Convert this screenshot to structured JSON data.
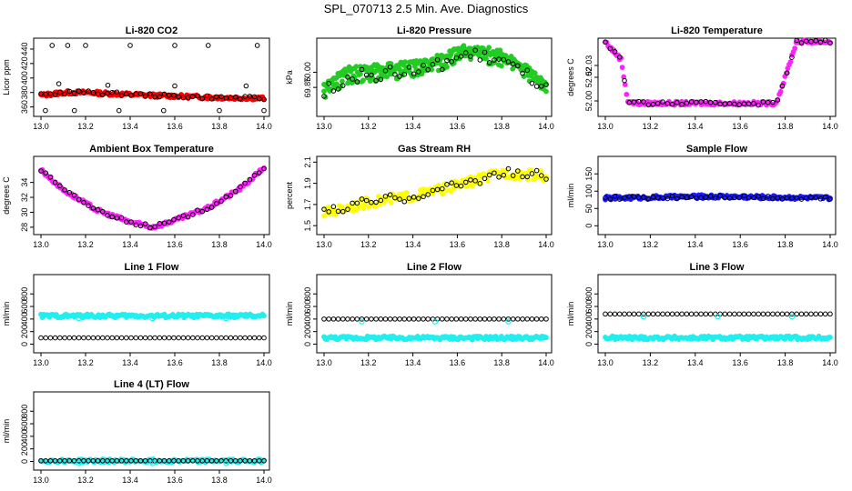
{
  "title": "SPL_070713  2.5 Min. Ave. Diagnostics",
  "colors": {
    "red": "#ff0000",
    "green": "#22cc22",
    "magenta": "#ff22ff",
    "yellow": "#ffff00",
    "blue": "#1a1aff",
    "cyan": "#22eeee",
    "black": "#000000"
  },
  "chart_data": [
    {
      "id": "co2",
      "type": "scatter",
      "title": "Li-820 CO2",
      "ylabel": "Licor ppm",
      "xlim": [
        13.0,
        14.0
      ],
      "ylim": [
        352,
        450
      ],
      "xticks": [
        "13.0",
        "13.2",
        "13.4",
        "13.6",
        "13.8",
        "14.0"
      ],
      "yticks": [
        "360",
        "380",
        "400",
        "420",
        "440"
      ],
      "fill_color": "#ff0000",
      "fill_trend": [
        [
          13.0,
          376
        ],
        [
          13.1,
          380
        ],
        [
          13.2,
          380
        ],
        [
          13.5,
          376
        ],
        [
          13.8,
          373
        ],
        [
          14.0,
          372
        ]
      ],
      "outlier_series": [
        {
          "x": 13.05,
          "y": 445
        },
        {
          "x": 13.12,
          "y": 445
        },
        {
          "x": 13.2,
          "y": 445
        },
        {
          "x": 13.4,
          "y": 445
        },
        {
          "x": 13.6,
          "y": 445
        },
        {
          "x": 13.75,
          "y": 445
        },
        {
          "x": 13.97,
          "y": 445
        },
        {
          "x": 13.02,
          "y": 355
        },
        {
          "x": 13.15,
          "y": 355
        },
        {
          "x": 13.35,
          "y": 355
        },
        {
          "x": 13.55,
          "y": 355
        },
        {
          "x": 13.8,
          "y": 355
        },
        {
          "x": 14.0,
          "y": 355
        },
        {
          "x": 13.08,
          "y": 392
        },
        {
          "x": 13.3,
          "y": 390
        },
        {
          "x": 13.6,
          "y": 389
        },
        {
          "x": 13.92,
          "y": 389
        }
      ]
    },
    {
      "id": "pressure",
      "type": "scatter",
      "title": "Li-820 Pressure",
      "ylabel": "kPa",
      "xlim": [
        13.0,
        14.0
      ],
      "ylim": [
        69.6,
        70.3
      ],
      "xticks": [
        "13.0",
        "13.2",
        "13.4",
        "13.6",
        "13.8",
        "14.0"
      ],
      "yticks": [
        "69.85",
        "70.00"
      ],
      "fill_color": "#22cc22",
      "fill_trend": [
        [
          13.0,
          69.8
        ],
        [
          13.1,
          69.95
        ],
        [
          13.25,
          69.98
        ],
        [
          13.45,
          70.02
        ],
        [
          13.65,
          70.18
        ],
        [
          13.8,
          70.12
        ],
        [
          13.95,
          69.92
        ],
        [
          14.0,
          69.82
        ]
      ]
    },
    {
      "id": "temp",
      "type": "scatter",
      "title": "Li-820 Temperature",
      "ylabel": "degrees C",
      "xlim": [
        13.0,
        14.0
      ],
      "ylim": [
        51.99,
        52.05
      ],
      "xticks": [
        "13.0",
        "13.2",
        "13.4",
        "13.6",
        "13.8",
        "14.0"
      ],
      "yticks": [
        "52.00",
        "52.02",
        "52.03"
      ],
      "fill_color": "#ff22ff",
      "fill_trend": [
        [
          13.0,
          52.05
        ],
        [
          13.07,
          52.035
        ],
        [
          13.1,
          52.0
        ],
        [
          13.13,
          51.998
        ],
        [
          13.76,
          51.998
        ],
        [
          13.8,
          52.02
        ],
        [
          13.85,
          52.05
        ],
        [
          14.0,
          52.05
        ]
      ]
    },
    {
      "id": "ambient",
      "type": "scatter",
      "title": "Ambient Box Temperature",
      "ylabel": "degrees C",
      "xlim": [
        13.0,
        14.0
      ],
      "ylim": [
        27.5,
        37
      ],
      "xticks": [
        "13.0",
        "13.2",
        "13.4",
        "13.6",
        "13.8",
        "14.0"
      ],
      "yticks": [
        "28",
        "30",
        "32",
        "34"
      ],
      "fill_color": "#ff22ff",
      "fill_trend": [
        [
          13.0,
          35.7
        ],
        [
          13.1,
          33.0
        ],
        [
          13.25,
          30.3
        ],
        [
          13.4,
          28.7
        ],
        [
          13.5,
          28.0
        ],
        [
          13.6,
          28.9
        ],
        [
          13.75,
          30.6
        ],
        [
          13.9,
          33.3
        ],
        [
          14.0,
          36.0
        ]
      ]
    },
    {
      "id": "rh",
      "type": "scatter",
      "title": "Gas Stream RH",
      "ylabel": "percent",
      "xlim": [
        13.0,
        14.0
      ],
      "ylim": [
        1.45,
        2.12
      ],
      "xticks": [
        "13.0",
        "13.2",
        "13.4",
        "13.6",
        "13.8",
        "14.0"
      ],
      "yticks": [
        "1.5",
        "1.7",
        "1.9",
        "2.1"
      ],
      "fill_color": "#ffff00",
      "fill_trend": [
        [
          13.0,
          1.62
        ],
        [
          13.2,
          1.72
        ],
        [
          13.4,
          1.78
        ],
        [
          13.6,
          1.88
        ],
        [
          13.8,
          2.0
        ],
        [
          14.0,
          1.97
        ]
      ]
    },
    {
      "id": "sample",
      "type": "scatter",
      "title": "Sample Flow",
      "ylabel": "ml/min",
      "xlim": [
        13.0,
        14.0
      ],
      "ylim": [
        -15,
        190
      ],
      "xticks": [
        "13.0",
        "13.2",
        "13.4",
        "13.6",
        "13.8",
        "14.0"
      ],
      "yticks": [
        "0",
        "50",
        "100",
        "150"
      ],
      "fill_color": "#1a1aff",
      "fill_trend": [
        [
          13.0,
          80
        ],
        [
          13.5,
          85
        ],
        [
          14.0,
          80
        ]
      ]
    },
    {
      "id": "line1",
      "type": "scatter",
      "title": "Line 1 Flow",
      "ylabel": "ml/min",
      "xlim": [
        13.0,
        14.0
      ],
      "ylim": [
        -80,
        1050
      ],
      "xticks": [
        "13.0",
        "13.2",
        "13.4",
        "13.6",
        "13.8",
        "14.0"
      ],
      "yticks": [
        "0",
        "200",
        "400",
        "600",
        "800"
      ],
      "fill_color": "#22eeee",
      "fill_trend": [
        [
          13.0,
          450
        ],
        [
          14.0,
          450
        ]
      ],
      "black_line": 100
    },
    {
      "id": "line2",
      "type": "scatter",
      "title": "Line 2 Flow",
      "ylabel": "ml/min",
      "xlim": [
        13.0,
        14.0
      ],
      "ylim": [
        -80,
        1050
      ],
      "xticks": [
        "13.0",
        "13.2",
        "13.4",
        "13.6",
        "13.8",
        "14.0"
      ],
      "yticks": [
        "0",
        "200",
        "400",
        "600",
        "800"
      ],
      "fill_color": "#22eeee",
      "fill_trend": [
        [
          13.0,
          100
        ],
        [
          14.0,
          100
        ]
      ],
      "black_line": 400
    },
    {
      "id": "line3",
      "type": "scatter",
      "title": "Line 3 Flow",
      "ylabel": "ml/min",
      "xlim": [
        13.0,
        14.0
      ],
      "ylim": [
        -80,
        1050
      ],
      "xticks": [
        "13.0",
        "13.2",
        "13.4",
        "13.6",
        "13.8",
        "14.0"
      ],
      "yticks": [
        "0",
        "200",
        "400",
        "600",
        "800"
      ],
      "fill_color": "#22eeee",
      "fill_trend": [
        [
          13.0,
          100
        ],
        [
          14.0,
          100
        ]
      ],
      "black_line": 480
    },
    {
      "id": "line4",
      "type": "scatter",
      "title": "Line 4 (LT) Flow",
      "ylabel": "ml/min",
      "xlim": [
        13.0,
        14.0
      ],
      "ylim": [
        -80,
        1050
      ],
      "xticks": [
        "13.0",
        "13.2",
        "13.4",
        "13.6",
        "13.8",
        "14.0"
      ],
      "yticks": [
        "0",
        "200",
        "400",
        "600",
        "800"
      ],
      "fill_color": "#22eeee",
      "fill_trend": [
        [
          13.0,
          10
        ],
        [
          14.0,
          10
        ]
      ],
      "black_line": 10
    }
  ]
}
